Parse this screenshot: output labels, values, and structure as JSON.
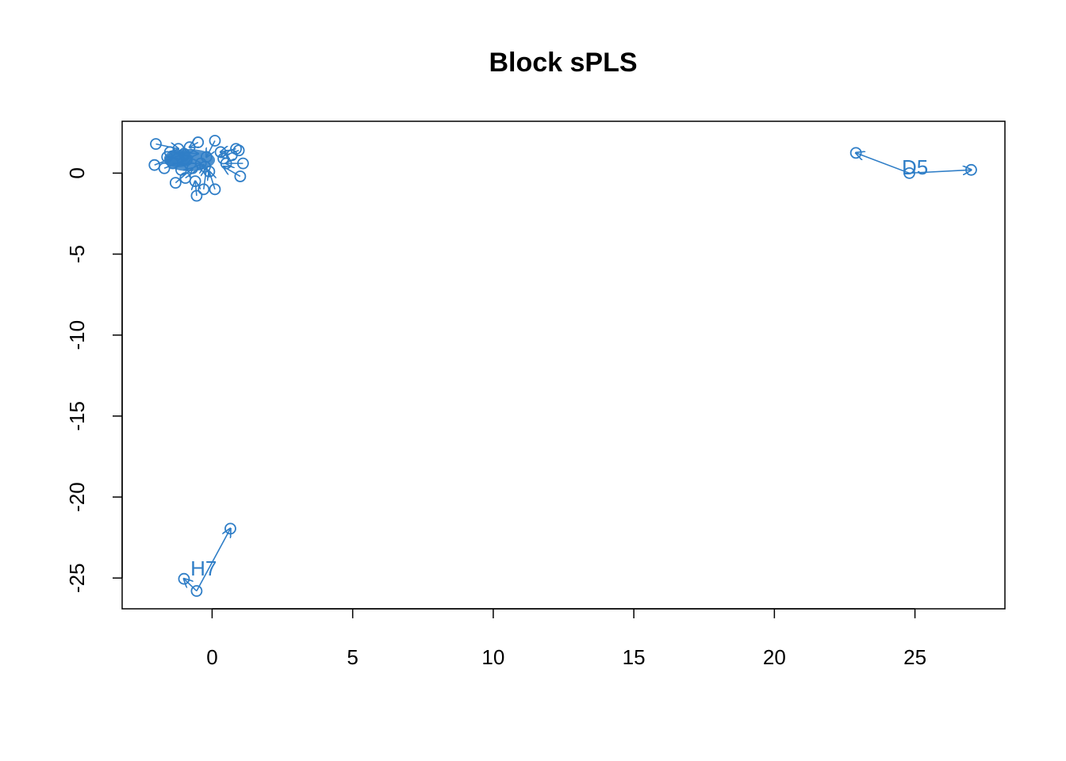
{
  "chart_data": {
    "type": "scatter",
    "title": "Block sPLS",
    "xlabel": "",
    "ylabel": "",
    "xlim": [
      -3.2,
      28.2
    ],
    "ylim": [
      -26.9,
      3.2
    ],
    "x_ticks": [
      0,
      5,
      10,
      15,
      20,
      25
    ],
    "y_ticks": [
      0,
      -5,
      -10,
      -15,
      -20,
      -25
    ],
    "x_tick_labels": [
      "0",
      "5",
      "10",
      "15",
      "20",
      "25"
    ],
    "y_tick_labels": [
      "0",
      "-5",
      "-10",
      "-15",
      "-20",
      "-25"
    ],
    "grid": false,
    "color": "#2F7EC7",
    "cluster": {
      "points": [
        [
          -2.0,
          1.8
        ],
        [
          -2.05,
          0.5
        ],
        [
          -1.6,
          1.0
        ],
        [
          -1.4,
          0.6
        ],
        [
          -1.3,
          -0.6
        ],
        [
          -1.2,
          1.5
        ],
        [
          -1.1,
          0.2
        ],
        [
          -1.0,
          1.2
        ],
        [
          -0.9,
          0.8
        ],
        [
          -0.8,
          1.6
        ],
        [
          -0.7,
          0.3
        ],
        [
          -0.6,
          -0.5
        ],
        [
          -0.55,
          -1.4
        ],
        [
          -0.5,
          1.9
        ],
        [
          -0.4,
          0.6
        ],
        [
          -0.3,
          -1.0
        ],
        [
          -0.2,
          1.0
        ],
        [
          -0.1,
          0.1
        ],
        [
          0.1,
          2.0
        ],
        [
          0.1,
          -1.0
        ],
        [
          0.3,
          1.3
        ],
        [
          0.5,
          0.6
        ],
        [
          0.7,
          1.1
        ],
        [
          0.85,
          1.5
        ],
        [
          0.95,
          1.4
        ],
        [
          1.0,
          -0.2
        ],
        [
          1.1,
          0.6
        ],
        [
          -1.7,
          0.3
        ],
        [
          -1.5,
          1.3
        ],
        [
          -0.95,
          -0.3
        ],
        [
          -0.25,
          0.4
        ],
        [
          0.4,
          0.9
        ]
      ],
      "arrows": [
        [
          [
            -2.0,
            1.8
          ],
          [
            -1.2,
            1.5
          ]
        ],
        [
          [
            -2.05,
            0.5
          ],
          [
            -1.0,
            1.2
          ]
        ],
        [
          [
            -1.3,
            -0.6
          ],
          [
            -0.7,
            0.3
          ]
        ],
        [
          [
            -0.55,
            -1.4
          ],
          [
            -0.6,
            -0.5
          ]
        ],
        [
          [
            -0.3,
            -1.0
          ],
          [
            -0.2,
            0.3
          ]
        ],
        [
          [
            0.1,
            -1.0
          ],
          [
            -0.1,
            0.1
          ]
        ],
        [
          [
            0.1,
            2.0
          ],
          [
            -0.2,
            1.0
          ]
        ],
        [
          [
            0.85,
            1.5
          ],
          [
            0.3,
            1.3
          ]
        ],
        [
          [
            1.0,
            -0.2
          ],
          [
            0.4,
            0.4
          ]
        ],
        [
          [
            1.1,
            0.6
          ],
          [
            0.5,
            0.6
          ]
        ],
        [
          [
            -0.5,
            1.9
          ],
          [
            -0.8,
            1.6
          ]
        ],
        [
          [
            -1.6,
            1.0
          ],
          [
            -0.9,
            0.8
          ]
        ],
        [
          [
            -1.4,
            0.6
          ],
          [
            -0.4,
            0.6
          ]
        ],
        [
          [
            0.95,
            1.4
          ],
          [
            0.3,
            1.0
          ]
        ],
        [
          [
            -0.95,
            -0.3
          ],
          [
            -0.3,
            0.5
          ]
        ],
        [
          [
            -1.7,
            0.3
          ],
          [
            -0.7,
            1.0
          ]
        ],
        [
          [
            -1.5,
            1.3
          ],
          [
            -0.5,
            1.2
          ]
        ]
      ],
      "label": "",
      "label_pos": [
        -0.8,
        0.5
      ]
    },
    "annotated_samples": [
      {
        "label": "D5",
        "label_pos": [
          25.0,
          0.35
        ],
        "points": [
          [
            22.9,
            1.25
          ],
          [
            27.0,
            0.2
          ],
          [
            24.8,
            0.0
          ]
        ],
        "arrows": [
          [
            [
              24.8,
              0.0
            ],
            [
              22.9,
              1.25
            ]
          ],
          [
            [
              24.8,
              0.0
            ],
            [
              27.0,
              0.2
            ]
          ]
        ]
      },
      {
        "label": "H7",
        "label_pos": [
          -0.3,
          -24.4
        ],
        "points": [
          [
            0.65,
            -21.95
          ],
          [
            -1.0,
            -25.05
          ],
          [
            -0.55,
            -25.8
          ]
        ],
        "arrows": [
          [
            [
              -0.55,
              -25.8
            ],
            [
              0.65,
              -21.95
            ]
          ],
          [
            [
              -0.55,
              -25.8
            ],
            [
              -1.0,
              -25.05
            ]
          ]
        ]
      }
    ]
  }
}
